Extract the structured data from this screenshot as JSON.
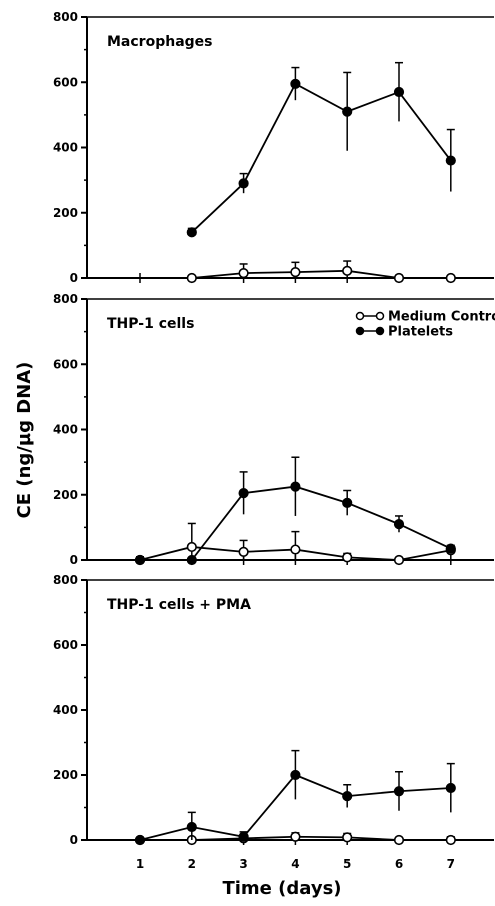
{
  "chart_data": [
    {
      "type": "line",
      "title": "Macrophages",
      "xlabel": "",
      "ylabel": "",
      "ylim": [
        0,
        800
      ],
      "yticks": [
        "0",
        "200",
        "400",
        "600",
        "800"
      ],
      "series": [
        {
          "name": "Medium Control",
          "marker": "open",
          "x": [
            2,
            3,
            4,
            5,
            6,
            7
          ],
          "y": [
            0,
            15,
            18,
            22,
            0,
            0
          ],
          "err": [
            5,
            28,
            30,
            30,
            8,
            5
          ]
        },
        {
          "name": "Platelets",
          "marker": "filled",
          "x": [
            2,
            3,
            4,
            5,
            6,
            7
          ],
          "y": [
            140,
            290,
            595,
            510,
            570,
            360
          ],
          "err": [
            12,
            30,
            50,
            120,
            90,
            95
          ]
        }
      ]
    },
    {
      "type": "line",
      "title": "THP-1 cells",
      "xlabel": "",
      "ylabel": "",
      "ylim": [
        0,
        800
      ],
      "yticks": [
        "0",
        "200",
        "400",
        "600",
        "800"
      ],
      "series": [
        {
          "name": "Medium Control",
          "marker": "open",
          "x": [
            1,
            2,
            3,
            4,
            5,
            6,
            7
          ],
          "y": [
            0,
            40,
            25,
            32,
            8,
            0,
            30
          ],
          "err": [
            10,
            72,
            35,
            55,
            12,
            5,
            10
          ]
        },
        {
          "name": "Platelets",
          "marker": "filled",
          "x": [
            1,
            2,
            3,
            4,
            5,
            6,
            7
          ],
          "y": [
            0,
            0,
            205,
            225,
            175,
            110,
            35
          ],
          "err": [
            5,
            5,
            65,
            90,
            38,
            25,
            10
          ]
        }
      ]
    },
    {
      "type": "line",
      "title": "THP-1 cells + PMA",
      "xlabel": "Time (days)",
      "ylabel": "",
      "ylim": [
        0,
        800
      ],
      "yticks": [
        "0",
        "200",
        "400",
        "600",
        "800"
      ],
      "xticks": [
        "1",
        "2",
        "3",
        "4",
        "5",
        "6",
        "7"
      ],
      "series": [
        {
          "name": "Medium Control",
          "marker": "open",
          "x": [
            1,
            2,
            3,
            4,
            5,
            6,
            7
          ],
          "y": [
            0,
            0,
            5,
            10,
            8,
            0,
            0
          ],
          "err": [
            5,
            5,
            10,
            12,
            12,
            5,
            10
          ]
        },
        {
          "name": "Platelets",
          "marker": "filled",
          "x": [
            1,
            2,
            3,
            4,
            5,
            6,
            7
          ],
          "y": [
            0,
            40,
            10,
            200,
            135,
            150,
            160
          ],
          "err": [
            5,
            45,
            15,
            75,
            35,
            60,
            75
          ]
        }
      ]
    }
  ],
  "y_axis_title": "CE (ng/µg DNA)",
  "x_axis_title": "Time (days)",
  "legend": {
    "items": [
      {
        "label": "Medium Control",
        "marker": "open"
      },
      {
        "label": "Platelets",
        "marker": "filled"
      }
    ]
  }
}
